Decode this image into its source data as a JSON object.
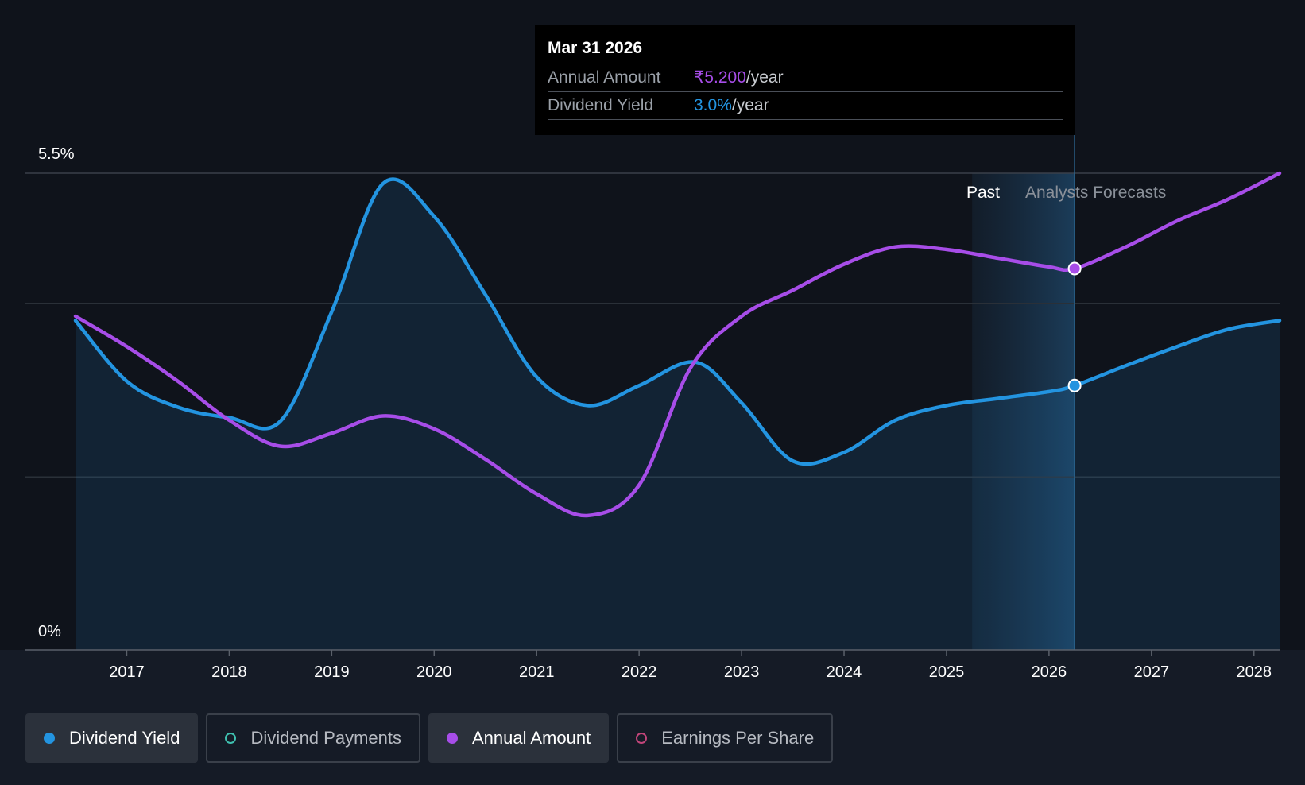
{
  "chart_data": {
    "type": "line",
    "title": "",
    "xlabel": "",
    "ylabel": "",
    "y_ticks": [
      "5.5%",
      "0%"
    ],
    "x_ticks": [
      "2017",
      "2018",
      "2019",
      "2020",
      "2021",
      "2022",
      "2023",
      "2024",
      "2025",
      "2026",
      "2027",
      "2028"
    ],
    "xlim": [
      2016.5,
      2028.25
    ],
    "ylim": [
      0,
      5.5
    ],
    "grid": true,
    "region_labels": {
      "past": "Past",
      "forecast": "Analysts Forecasts"
    },
    "series": [
      {
        "name": "Dividend Yield",
        "color": "#2394e0",
        "area": true,
        "points": [
          [
            2016.5,
            3.8
          ],
          [
            2017.0,
            3.1
          ],
          [
            2017.5,
            2.8
          ],
          [
            2018.0,
            2.68
          ],
          [
            2018.5,
            2.64
          ],
          [
            2019.0,
            3.9
          ],
          [
            2019.5,
            5.38
          ],
          [
            2020.0,
            5.0
          ],
          [
            2020.5,
            4.1
          ],
          [
            2021.0,
            3.15
          ],
          [
            2021.5,
            2.82
          ],
          [
            2022.0,
            3.05
          ],
          [
            2022.55,
            3.32
          ],
          [
            2023.0,
            2.85
          ],
          [
            2023.5,
            2.18
          ],
          [
            2024.0,
            2.28
          ],
          [
            2024.5,
            2.65
          ],
          [
            2025.0,
            2.82
          ],
          [
            2025.5,
            2.9
          ],
          [
            2026.0,
            2.98
          ],
          [
            2026.25,
            3.05
          ],
          [
            2026.75,
            3.28
          ],
          [
            2027.25,
            3.5
          ],
          [
            2027.75,
            3.7
          ],
          [
            2028.25,
            3.8
          ]
        ]
      },
      {
        "name": "Annual Amount",
        "color": "#a74de8",
        "area": false,
        "points": [
          [
            2016.5,
            3.85
          ],
          [
            2017.0,
            3.5
          ],
          [
            2017.5,
            3.1
          ],
          [
            2018.0,
            2.65
          ],
          [
            2018.5,
            2.35
          ],
          [
            2019.0,
            2.5
          ],
          [
            2019.5,
            2.7
          ],
          [
            2020.0,
            2.55
          ],
          [
            2020.5,
            2.2
          ],
          [
            2021.0,
            1.8
          ],
          [
            2021.5,
            1.55
          ],
          [
            2022.0,
            1.9
          ],
          [
            2022.5,
            3.25
          ],
          [
            2023.0,
            3.85
          ],
          [
            2023.5,
            4.15
          ],
          [
            2024.0,
            4.45
          ],
          [
            2024.5,
            4.65
          ],
          [
            2025.0,
            4.62
          ],
          [
            2025.5,
            4.52
          ],
          [
            2026.0,
            4.42
          ],
          [
            2026.25,
            4.4
          ],
          [
            2026.75,
            4.65
          ],
          [
            2027.25,
            4.95
          ],
          [
            2027.75,
            5.2
          ],
          [
            2028.25,
            5.5
          ]
        ]
      }
    ],
    "highlight": {
      "x": 2026.25
    },
    "tooltip": {
      "date": "Mar 31 2026",
      "rows": [
        {
          "label": "Annual Amount",
          "value": "₹5.200",
          "unit": "/year",
          "color": "#a74de8"
        },
        {
          "label": "Dividend Yield",
          "value": "3.0%",
          "unit": "/year",
          "color": "#2394e0"
        }
      ]
    }
  },
  "legend": [
    {
      "label": "Dividend Yield",
      "active": true,
      "filled": true,
      "color": "#2394e0"
    },
    {
      "label": "Dividend Payments",
      "active": false,
      "filled": false,
      "color": "#3fc1b0"
    },
    {
      "label": "Annual Amount",
      "active": true,
      "filled": true,
      "color": "#a74de8"
    },
    {
      "label": "Earnings Per Share",
      "active": false,
      "filled": false,
      "color": "#c2457a"
    }
  ]
}
